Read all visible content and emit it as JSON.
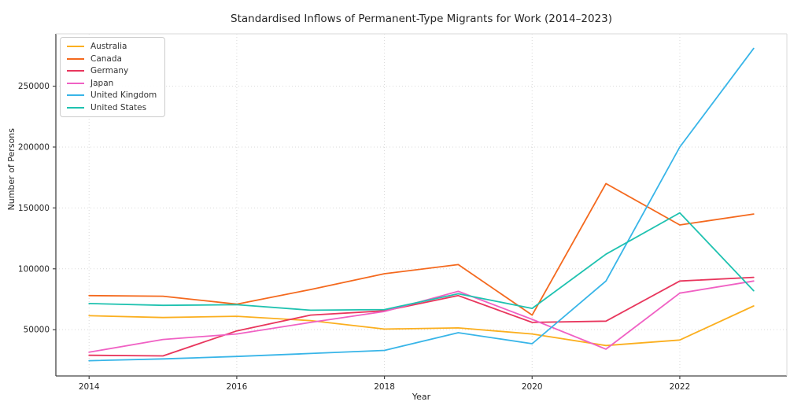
{
  "chart_data": {
    "type": "line",
    "title": "Standardised Inflows of Permanent-Type Migrants for Work (2014–2023)",
    "xlabel": "Year",
    "ylabel": "Number of Persons",
    "x": [
      2014,
      2015,
      2016,
      2017,
      2018,
      2019,
      2020,
      2021,
      2022,
      2023
    ],
    "series": [
      {
        "name": "Australia",
        "color": "#fbaf1f",
        "values": [
          61500,
          60000,
          61000,
          57500,
          50500,
          51500,
          46500,
          37000,
          41500,
          69500
        ]
      },
      {
        "name": "Canada",
        "color": "#f4691e",
        "values": [
          78000,
          77500,
          71000,
          83000,
          96000,
          103500,
          62000,
          170000,
          136000,
          145000
        ]
      },
      {
        "name": "Germany",
        "color": "#e8365d",
        "values": [
          29000,
          28500,
          49000,
          62000,
          65500,
          78000,
          56000,
          57000,
          90000,
          93000
        ]
      },
      {
        "name": "Japan",
        "color": "#f061c4",
        "values": [
          31500,
          42000,
          46500,
          56000,
          65000,
          81500,
          58500,
          34000,
          80000,
          90000
        ]
      },
      {
        "name": "United Kingdom",
        "color": "#38b5e8",
        "values": [
          24500,
          26000,
          28000,
          30500,
          33000,
          47500,
          38500,
          90000,
          200000,
          281000
        ]
      },
      {
        "name": "United States",
        "color": "#1fc2b0",
        "values": [
          71500,
          70000,
          70500,
          66000,
          66500,
          79500,
          67500,
          112000,
          146000,
          82000
        ]
      }
    ],
    "xticks": [
      2014,
      2016,
      2018,
      2020,
      2022
    ],
    "yticks": [
      50000,
      100000,
      150000,
      200000,
      250000
    ],
    "xlim": [
      2013.55,
      2023.45
    ],
    "ylim": [
      12000,
      293000
    ],
    "grid": true,
    "grid_style": "dotted",
    "legend_position": "upper-left",
    "colors": {
      "grid": "#d9d9d9",
      "spine_main": "#444444",
      "spine_light": "#d9d9d9",
      "text": "#262626"
    }
  }
}
